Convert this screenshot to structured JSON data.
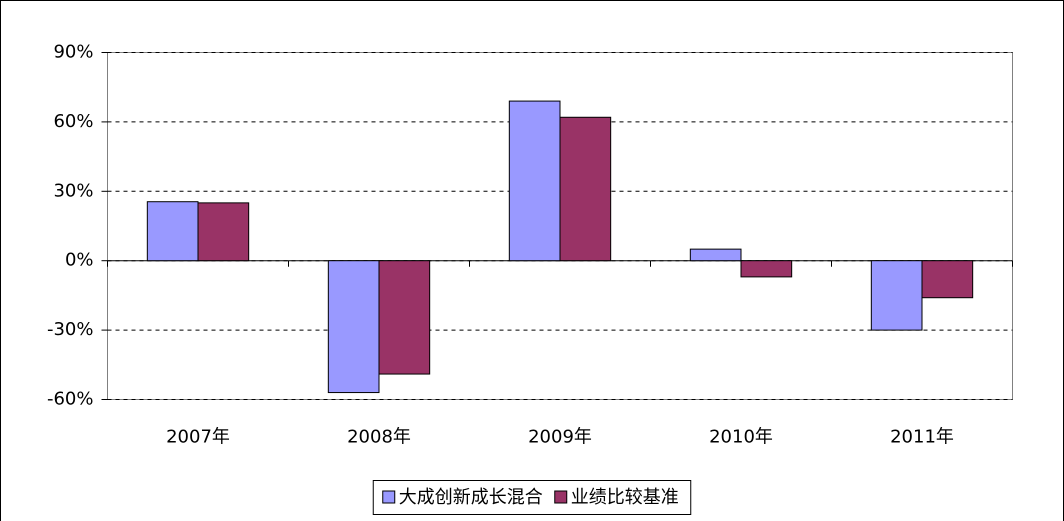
{
  "chart_data": {
    "type": "bar",
    "categories": [
      "2007年",
      "2008年",
      "2009年",
      "2010年",
      "2011年"
    ],
    "series": [
      {
        "name": "大成创新成长混合",
        "color": "#9999ff",
        "values": [
          25.5,
          -57,
          69,
          5,
          -30
        ]
      },
      {
        "name": "业绩比较基准",
        "color": "#993366",
        "values": [
          25,
          -49,
          62,
          -7,
          -16
        ]
      }
    ],
    "ylim": [
      -60,
      90
    ],
    "yticks": [
      {
        "value": -60,
        "label": "-60%"
      },
      {
        "value": -30,
        "label": "-30%"
      },
      {
        "value": 0,
        "label": "0%"
      },
      {
        "value": 30,
        "label": "30%"
      },
      {
        "value": 60,
        "label": "60%"
      },
      {
        "value": 90,
        "label": "90%"
      }
    ],
    "grid": true,
    "legend": "bottom"
  }
}
